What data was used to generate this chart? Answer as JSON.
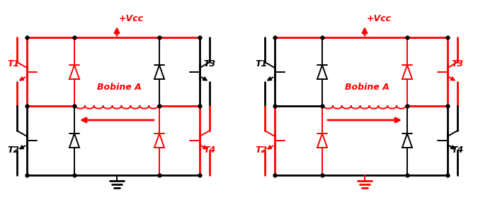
{
  "red": "#FF0000",
  "black": "#000000",
  "bg": "#FFFFFF",
  "vcc_label": "+Vcc",
  "bobine_label": "Bobine A",
  "t1_label": "T1",
  "t2_label": "T2",
  "t3_label": "T3",
  "t4_label": "T4",
  "fig_width": 6.99,
  "fig_height": 2.86,
  "dpi": 100
}
